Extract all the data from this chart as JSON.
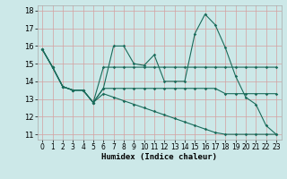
{
  "xlabel": "Humidex (Indice chaleur)",
  "bg_color": "#cce8e8",
  "grid_color": "#d4a0a0",
  "line_color": "#1a6b5a",
  "xlim": [
    -0.5,
    23.5
  ],
  "ylim": [
    10.7,
    18.3
  ],
  "yticks": [
    11,
    12,
    13,
    14,
    15,
    16,
    17,
    18
  ],
  "xticks": [
    0,
    1,
    2,
    3,
    4,
    5,
    6,
    7,
    8,
    9,
    10,
    11,
    12,
    13,
    14,
    15,
    16,
    17,
    18,
    19,
    20,
    21,
    22,
    23
  ],
  "series": [
    [
      15.8,
      14.8,
      13.7,
      13.5,
      13.5,
      12.8,
      13.6,
      16.0,
      16.0,
      15.0,
      14.9,
      15.5,
      14.0,
      14.0,
      14.0,
      16.7,
      17.8,
      17.2,
      15.9,
      14.3,
      13.1,
      12.7,
      11.5,
      11.0
    ],
    [
      15.8,
      14.8,
      13.7,
      13.5,
      13.5,
      12.8,
      14.8,
      14.8,
      14.8,
      14.8,
      14.8,
      14.8,
      14.8,
      14.8,
      14.8,
      14.8,
      14.8,
      14.8,
      14.8,
      14.8,
      14.8,
      14.8,
      14.8,
      14.8
    ],
    [
      15.8,
      14.8,
      13.7,
      13.5,
      13.5,
      12.8,
      13.6,
      13.6,
      13.6,
      13.6,
      13.6,
      13.6,
      13.6,
      13.6,
      13.6,
      13.6,
      13.6,
      13.6,
      13.3,
      13.3,
      13.3,
      13.3,
      13.3,
      13.3
    ],
    [
      15.8,
      14.8,
      13.7,
      13.5,
      13.5,
      12.8,
      13.3,
      13.1,
      12.9,
      12.7,
      12.5,
      12.3,
      12.1,
      11.9,
      11.7,
      11.5,
      11.3,
      11.1,
      11.0,
      11.0,
      11.0,
      11.0,
      11.0,
      11.0
    ]
  ]
}
